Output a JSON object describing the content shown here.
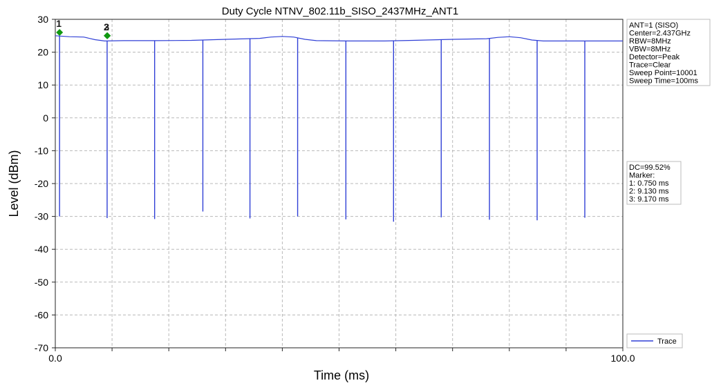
{
  "chart_data": {
    "type": "line",
    "title": "Duty Cycle NTNV_802.11b_SISO_2437MHz_ANT1",
    "xlabel": "Time (ms)",
    "ylabel": "Level (dBm)",
    "xlim": [
      0,
      100
    ],
    "ylim": [
      -70,
      30
    ],
    "x_tick_labels": [
      {
        "value": 0,
        "label": "0.0"
      },
      {
        "value": 100,
        "label": "100.0"
      }
    ],
    "x_grid_count": 10,
    "y_ticks": [
      30,
      20,
      10,
      0,
      -10,
      -20,
      -30,
      -40,
      -50,
      -60,
      -70
    ],
    "grid": true,
    "legend": {
      "placement": "bottom-right",
      "entries": [
        "Trace"
      ]
    },
    "series": [
      {
        "name": "Trace",
        "color": "#2f3fd6",
        "baseline": [
          [
            0.0,
            25.0
          ],
          [
            2.5,
            24.7
          ],
          [
            5.0,
            24.6
          ],
          [
            7.0,
            23.8
          ],
          [
            8.7,
            23.4
          ],
          [
            12.0,
            23.5
          ],
          [
            18.0,
            23.5
          ],
          [
            24.0,
            23.6
          ],
          [
            30.0,
            23.9
          ],
          [
            36.0,
            24.2
          ],
          [
            38.0,
            24.6
          ],
          [
            40.0,
            24.8
          ],
          [
            42.0,
            24.6
          ],
          [
            44.0,
            23.9
          ],
          [
            46.0,
            23.5
          ],
          [
            52.0,
            23.4
          ],
          [
            58.0,
            23.4
          ],
          [
            63.0,
            23.6
          ],
          [
            70.0,
            23.9
          ],
          [
            76.0,
            24.1
          ],
          [
            78.0,
            24.5
          ],
          [
            80.0,
            24.7
          ],
          [
            82.0,
            24.4
          ],
          [
            84.0,
            23.7
          ],
          [
            86.0,
            23.4
          ],
          [
            92.0,
            23.4
          ],
          [
            100.0,
            23.4
          ]
        ],
        "dips": [
          [
            0.75,
            -30.0
          ],
          [
            9.13,
            -30.5
          ],
          [
            17.5,
            -30.8
          ],
          [
            26.0,
            -28.5
          ],
          [
            34.3,
            -30.6
          ],
          [
            42.7,
            -30.0
          ],
          [
            51.2,
            -30.9
          ],
          [
            59.6,
            -31.6
          ],
          [
            68.0,
            -30.3
          ],
          [
            76.5,
            -31.0
          ],
          [
            84.9,
            -31.2
          ],
          [
            93.3,
            -30.4
          ]
        ]
      }
    ],
    "markers": [
      {
        "label": "1",
        "x": 0.75,
        "y": 26.0
      },
      {
        "label": "2",
        "x": 9.13,
        "y": 25.0
      },
      {
        "label": "3",
        "x": 9.17,
        "y": 25.0
      }
    ],
    "marker_color": "#119911",
    "info_top": [
      "ANT=1 (SISO)",
      "Center=2.437GHz",
      "RBW=8MHz",
      "VBW=8MHz",
      "Detector=Peak",
      "Trace=Clear",
      "Sweep Point=10001",
      "Sweep Time=100ms"
    ],
    "info_bottom": [
      "DC=99.52%",
      "Marker:",
      "1: 0.750 ms",
      "2: 9.130 ms",
      "3: 9.170 ms"
    ]
  }
}
